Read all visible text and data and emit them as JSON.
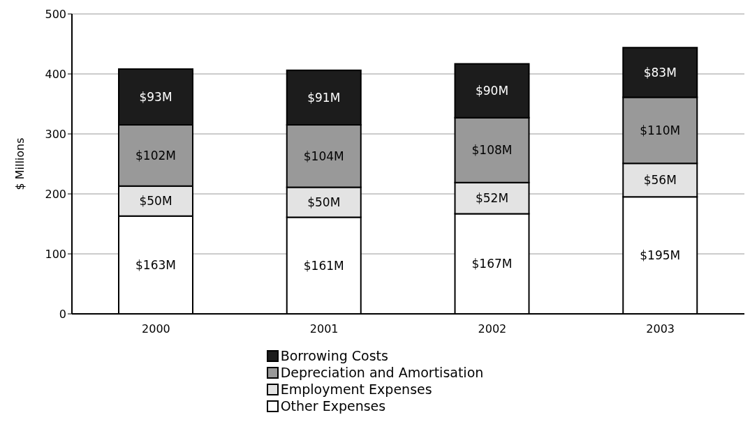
{
  "chart_data": {
    "type": "bar",
    "stacked": true,
    "ylabel": "$ Millions",
    "categories": [
      "2000",
      "2001",
      "2002",
      "2003"
    ],
    "series": [
      {
        "name": "Other Expenses",
        "color": "#ffffff",
        "values": [
          163,
          161,
          167,
          195
        ],
        "value_labels": [
          "$163M",
          "$161M",
          "$167M",
          "$195M"
        ]
      },
      {
        "name": "Employment Expenses",
        "color": "#e3e3e3",
        "values": [
          50,
          50,
          52,
          56
        ],
        "value_labels": [
          "$50M",
          "$50M",
          "$52M",
          "$56M"
        ]
      },
      {
        "name": "Depreciation and Amortisation",
        "color": "#999999",
        "values": [
          102,
          104,
          108,
          110
        ],
        "value_labels": [
          "$102M",
          "$104M",
          "$108M",
          "$110M"
        ]
      },
      {
        "name": "Borrowing Costs",
        "color": "#1c1c1c",
        "values": [
          93,
          91,
          90,
          83
        ],
        "value_labels": [
          "$93M",
          "$91M",
          "$90M",
          "$83M"
        ]
      }
    ],
    "ylim": [
      0,
      500
    ],
    "yticks": [
      0,
      100,
      200,
      300,
      400,
      500
    ],
    "grid": "y",
    "legend": "bottom"
  }
}
